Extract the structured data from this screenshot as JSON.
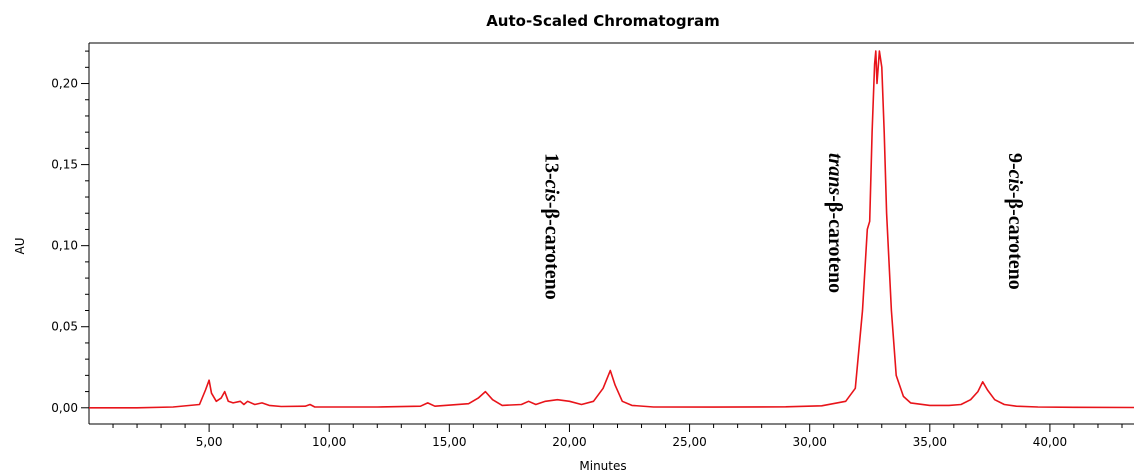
{
  "chart_data": {
    "type": "line",
    "title": "Auto-Scaled Chromatogram",
    "xlabel": "Minutes",
    "ylabel": "AU",
    "xlim": [
      0,
      43.5
    ],
    "ylim": [
      -0.01,
      0.225
    ],
    "x_major_ticks": [
      5,
      10,
      15,
      20,
      25,
      30,
      35,
      40
    ],
    "x_tick_labels": [
      "5,00",
      "10,00",
      "15,00",
      "20,00",
      "25,00",
      "30,00",
      "35,00",
      "40,00"
    ],
    "y_major_ticks": [
      0,
      0.05,
      0.1,
      0.15,
      0.2
    ],
    "y_tick_labels": [
      "0,00",
      "0,05",
      "0,10",
      "0,15",
      "0,20"
    ],
    "grid": false,
    "series": [
      {
        "color": "#e8141a",
        "x": [
          0,
          2.0,
          3.5,
          4.6,
          4.85,
          5.0,
          5.1,
          5.3,
          5.5,
          5.65,
          5.8,
          6.0,
          6.3,
          6.45,
          6.6,
          6.9,
          7.2,
          7.5,
          8.0,
          9.0,
          9.2,
          9.4,
          10.5,
          12.0,
          13.8,
          14.1,
          14.4,
          15.8,
          16.2,
          16.5,
          16.8,
          17.2,
          18.0,
          18.3,
          18.6,
          19.0,
          19.5,
          20.0,
          20.5,
          21.0,
          21.4,
          21.7,
          21.9,
          22.2,
          22.6,
          23.5,
          26.0,
          29.0,
          30.5,
          31.5,
          31.9,
          32.2,
          32.4,
          32.5,
          32.6,
          32.7,
          32.75,
          32.8,
          32.9,
          33.0,
          33.1,
          33.2,
          33.4,
          33.6,
          33.9,
          34.2,
          35.0,
          35.8,
          36.3,
          36.7,
          37.0,
          37.2,
          37.4,
          37.7,
          38.1,
          38.6,
          39.5,
          41.0,
          43.5
        ],
        "y": [
          0.0,
          0.0,
          0.0005,
          0.002,
          0.011,
          0.017,
          0.009,
          0.004,
          0.006,
          0.01,
          0.004,
          0.003,
          0.004,
          0.002,
          0.004,
          0.002,
          0.003,
          0.0015,
          0.0008,
          0.001,
          0.002,
          0.0005,
          0.0005,
          0.0005,
          0.001,
          0.003,
          0.001,
          0.0025,
          0.006,
          0.01,
          0.005,
          0.0015,
          0.002,
          0.004,
          0.002,
          0.004,
          0.005,
          0.004,
          0.002,
          0.004,
          0.012,
          0.023,
          0.014,
          0.004,
          0.0015,
          0.0005,
          0.0004,
          0.0006,
          0.0012,
          0.004,
          0.012,
          0.06,
          0.11,
          0.115,
          0.17,
          0.212,
          0.22,
          0.2,
          0.22,
          0.21,
          0.17,
          0.12,
          0.06,
          0.02,
          0.007,
          0.003,
          0.0015,
          0.0015,
          0.002,
          0.005,
          0.01,
          0.016,
          0.011,
          0.005,
          0.002,
          0.001,
          0.0005,
          0.0003,
          0.0002
        ]
      }
    ],
    "annotations": [
      {
        "prefix": "13-",
        "italic": "cis",
        "suffix": "-β-caroteno",
        "x": 19.0
      },
      {
        "prefix": "",
        "italic": "trans",
        "suffix": "-β-caroteno",
        "x": 30.8
      },
      {
        "prefix": "9-",
        "italic": "cis",
        "suffix": "-β-caroteno",
        "x": 38.3
      }
    ]
  }
}
